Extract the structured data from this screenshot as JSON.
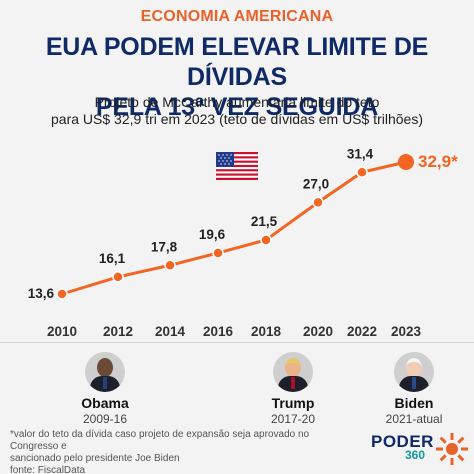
{
  "header": {
    "kicker": "ECONOMIA AMERICANA",
    "title_line1": "EUA PODEM ELEVAR LIMITE DE DÍVIDAS",
    "title_line2": "PELA 13ª VEZ SEGUIDA",
    "subtitle_line1": "Projeto de McCarthy aumentaria limite do teto",
    "subtitle_line2": "para US$ 32,9 tri em 2023 (teto de dívidas em US$ trilhões)"
  },
  "colors": {
    "accent": "#f26522",
    "title": "#0f2a66",
    "kicker": "#e8622a"
  },
  "chart_data": {
    "type": "line",
    "x": [
      2010,
      2012,
      2014,
      2016,
      2018,
      2020,
      2022,
      2023
    ],
    "tick_labels": [
      "2010",
      "2012",
      "2014",
      "2016",
      "2018",
      "2020",
      "2022",
      "2023"
    ],
    "values": [
      13.6,
      16.1,
      17.8,
      19.6,
      21.5,
      27.0,
      31.4,
      32.9
    ],
    "data_labels": [
      "13,6",
      "16,1",
      "17,8",
      "19,6",
      "21,5",
      "27,0",
      "31,4",
      "32,9*"
    ],
    "highlight_index": 7,
    "ylim": [
      13.6,
      32.9
    ],
    "line_color": "#f26522",
    "grid": false,
    "legend": "none"
  },
  "presidents": [
    {
      "name": "Obama",
      "term": "2009-16",
      "icon": "obama-portrait"
    },
    {
      "name": "Trump",
      "term": "2017-20",
      "icon": "trump-portrait"
    },
    {
      "name": "Biden",
      "term": "2021-atual",
      "icon": "biden-portrait"
    }
  ],
  "footnote": {
    "line1": "*valor do teto da dívida caso projeto de expansão seja aprovado no Congresso e",
    "line2": "sancionado pelo presidente Joe Biden",
    "line3": "fonte: FiscalData"
  },
  "brand": {
    "word": "PODER",
    "sub": "360",
    "icon": "poder360-sun-logo"
  },
  "flag_icon": "us-flag-icon"
}
